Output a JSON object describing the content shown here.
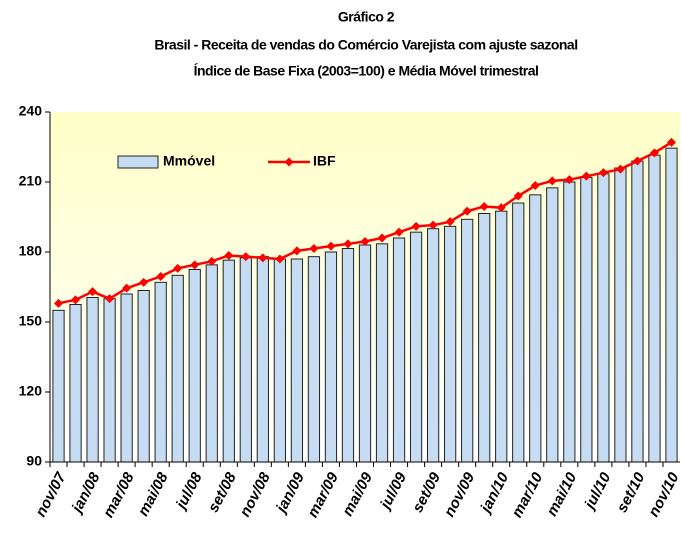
{
  "chart_data": {
    "type": "bar-line",
    "title": "Gráfico 2",
    "subtitle": [
      "Brasil - Receita de vendas do Comércio Varejista com ajuste sazonal",
      "Índice de Base Fixa (2003=100) e Média Móvel trimestral"
    ],
    "categories": [
      "nov/07",
      null,
      "jan/08",
      null,
      "mar/08",
      null,
      "mai/08",
      null,
      "jul/08",
      null,
      "set/08",
      null,
      "nov/08",
      null,
      "jan/09",
      null,
      "mar/09",
      null,
      "mai/09",
      null,
      "jul/09",
      null,
      "set/09",
      null,
      "nov/09",
      null,
      "jan/10",
      null,
      "mar/10",
      null,
      "mai/10",
      null,
      "jul/10",
      null,
      "set/10",
      null,
      "nov/10"
    ],
    "series": [
      {
        "name": "Mmóvel",
        "type": "bar",
        "color": "#c5dcf2",
        "values": [
          155,
          157.5,
          160.5,
          160,
          162,
          163.5,
          167,
          170,
          172.5,
          174.5,
          176.5,
          177.5,
          178,
          177,
          177,
          178,
          180,
          181.5,
          183,
          183.5,
          186,
          188.5,
          190,
          191,
          194,
          196.5,
          197.5,
          201,
          204.5,
          207.5,
          210,
          212,
          213.5,
          216,
          219,
          221.5,
          224.5
        ]
      },
      {
        "name": "IBF",
        "type": "line",
        "color": "#ff0000",
        "values": [
          158,
          159.5,
          163,
          160,
          164.5,
          167,
          169.5,
          173,
          174.5,
          176,
          178.5,
          178,
          177.5,
          177,
          180.5,
          181.5,
          182.5,
          183.5,
          184.5,
          186,
          188.5,
          191,
          191.5,
          193,
          197.5,
          199.5,
          199,
          204,
          208.5,
          210.5,
          211,
          212.5,
          214,
          215.5,
          219,
          222.5,
          227
        ]
      }
    ],
    "ylim": [
      90,
      240
    ],
    "yticks": [
      90,
      120,
      150,
      180,
      210,
      240
    ],
    "grid": false,
    "legend": "upper left"
  }
}
